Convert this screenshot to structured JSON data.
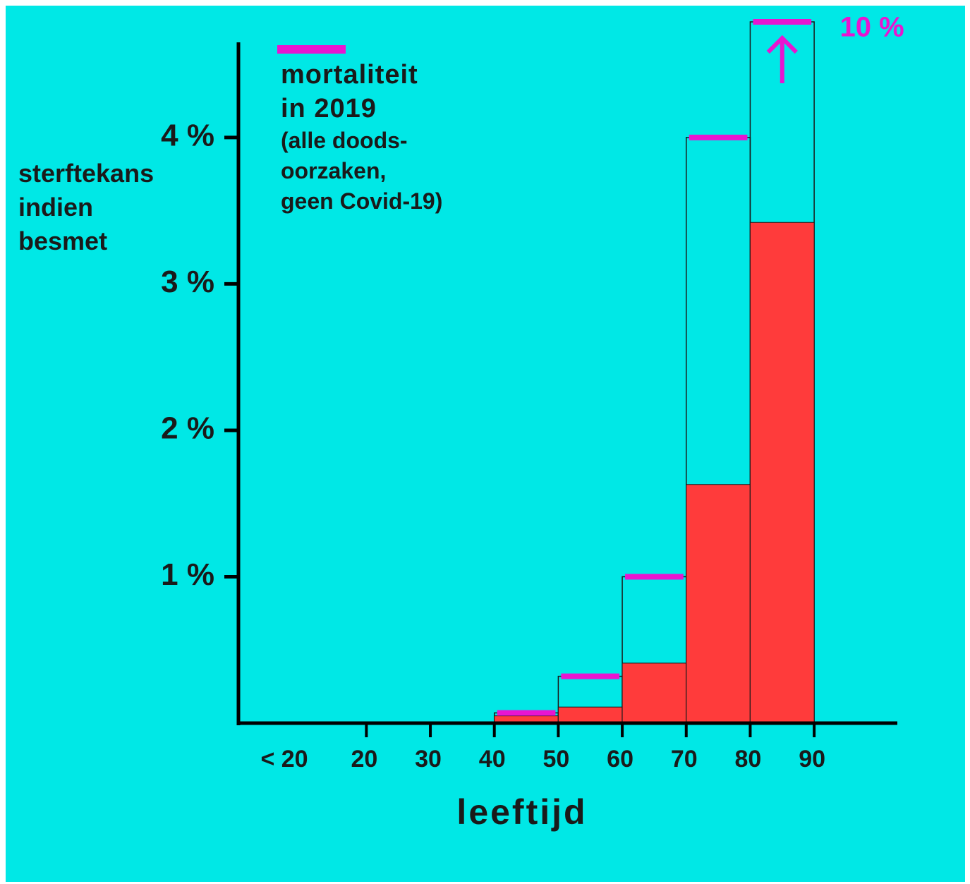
{
  "chart_data": {
    "type": "histogram",
    "ylabel": "sterftekans\nindien\nbesmet",
    "xlabel": "leeftijd",
    "bins": [
      40,
      50,
      60,
      70,
      80,
      90
    ],
    "series": [
      {
        "color": "#ff3b3b",
        "values": [
          0.05,
          0.11,
          0.41,
          1.63,
          3.42
        ]
      },
      {
        "name": "mortaliteit\nin 2019",
        "color": "#e815d0",
        "values": [
          0.07,
          0.32,
          1.0,
          4.0,
          10
        ],
        "value_labels": [
          null,
          null,
          null,
          null,
          "10 %"
        ]
      }
    ],
    "note": "(alle doods-\noorzaken,\ngeen Covid-19)",
    "xlim": [
      0,
      103
    ],
    "xticks": [
      20,
      30,
      40,
      50,
      60,
      70,
      80,
      90
    ],
    "x_low_label": "< 20",
    "ylim": [
      0,
      4.65
    ],
    "yticks": [
      {
        "value": 1,
        "label": "1 %"
      },
      {
        "value": 2,
        "label": "2 %"
      },
      {
        "value": 3,
        "label": "3 %"
      },
      {
        "value": 4,
        "label": "4 %"
      }
    ]
  }
}
